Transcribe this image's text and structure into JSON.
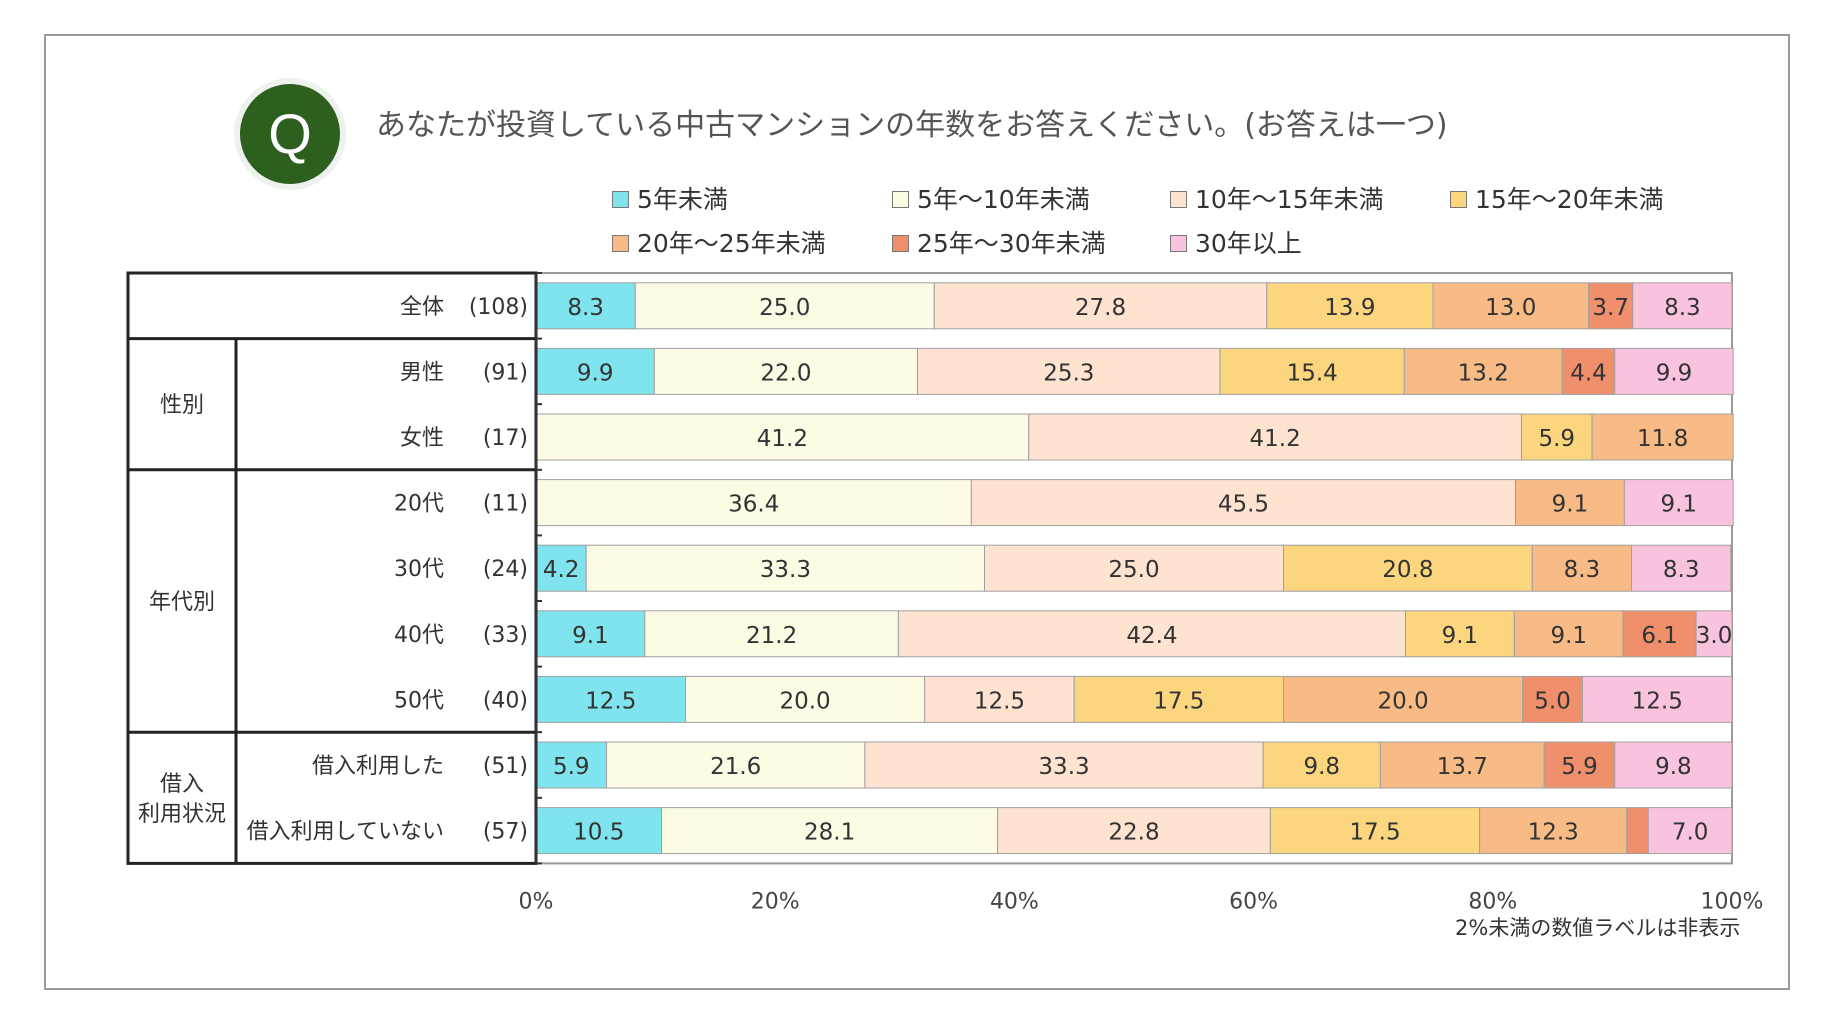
{
  "question": {
    "badge": "Q",
    "text": "あなたが投資している中古マンションの年数をお答えください。(お答えは一つ)"
  },
  "note": "2%未満の数値ラベルは非表示",
  "chart_data": {
    "type": "bar",
    "orientation": "horizontal-stacked-100",
    "legend_placement": "top",
    "series": [
      {
        "name": "5年未満",
        "color": "#7fe4ee"
      },
      {
        "name": "5年～10年未満",
        "color": "#fdfbe4"
      },
      {
        "name": "10年～15年未満",
        "color": "#fde3d0"
      },
      {
        "name": "15年～20年未満",
        "color": "#fbd67e"
      },
      {
        "name": "20年～25年未満",
        "color": "#f8bb86"
      },
      {
        "name": "25年～30年未満",
        "color": "#f08f6c"
      },
      {
        "name": "30年以上",
        "color": "#f9c3de"
      }
    ],
    "rows": [
      {
        "group": "",
        "label": "全体",
        "n": "(108)",
        "values": [
          8.3,
          25.0,
          27.8,
          13.9,
          13.0,
          3.7,
          8.3
        ]
      },
      {
        "group": "性別",
        "label": "男性",
        "n": "(91)",
        "values": [
          9.9,
          22.0,
          25.3,
          15.4,
          13.2,
          4.4,
          9.9
        ]
      },
      {
        "group": "性別",
        "label": "女性",
        "n": "(17)",
        "values": [
          0,
          41.2,
          41.2,
          5.9,
          11.8,
          0,
          0
        ]
      },
      {
        "group": "年代別",
        "label": "20代",
        "n": "(11)",
        "values": [
          0,
          36.4,
          45.5,
          0,
          9.1,
          0,
          9.1
        ]
      },
      {
        "group": "年代別",
        "label": "30代",
        "n": "(24)",
        "values": [
          4.2,
          33.3,
          25.0,
          20.8,
          8.3,
          0,
          8.3
        ]
      },
      {
        "group": "年代別",
        "label": "40代",
        "n": "(33)",
        "values": [
          9.1,
          21.2,
          42.4,
          9.1,
          9.1,
          6.1,
          3.0
        ]
      },
      {
        "group": "年代別",
        "label": "50代",
        "n": "(40)",
        "values": [
          12.5,
          20.0,
          12.5,
          17.5,
          20.0,
          5.0,
          12.5
        ]
      },
      {
        "group": "借入 利用状況",
        "label": "借入利用した",
        "n": "(51)",
        "values": [
          5.9,
          21.6,
          33.3,
          9.8,
          13.7,
          5.9,
          9.8
        ]
      },
      {
        "group": "借入 利用状況",
        "label": "借入利用していない",
        "n": "(57)",
        "values": [
          10.5,
          28.1,
          22.8,
          17.5,
          12.3,
          1.8,
          7.0
        ]
      }
    ],
    "groups": [
      {
        "label": "性別",
        "lines": [
          "性別"
        ]
      },
      {
        "label": "年代別",
        "lines": [
          "年代別"
        ]
      },
      {
        "label": "借入 利用状況",
        "lines": [
          "借入",
          "利用状況"
        ]
      }
    ],
    "x_ticks": [
      "0%",
      "20%",
      "40%",
      "60%",
      "80%",
      "100%"
    ],
    "xlim": [
      0,
      100
    ],
    "label_threshold": 2
  }
}
